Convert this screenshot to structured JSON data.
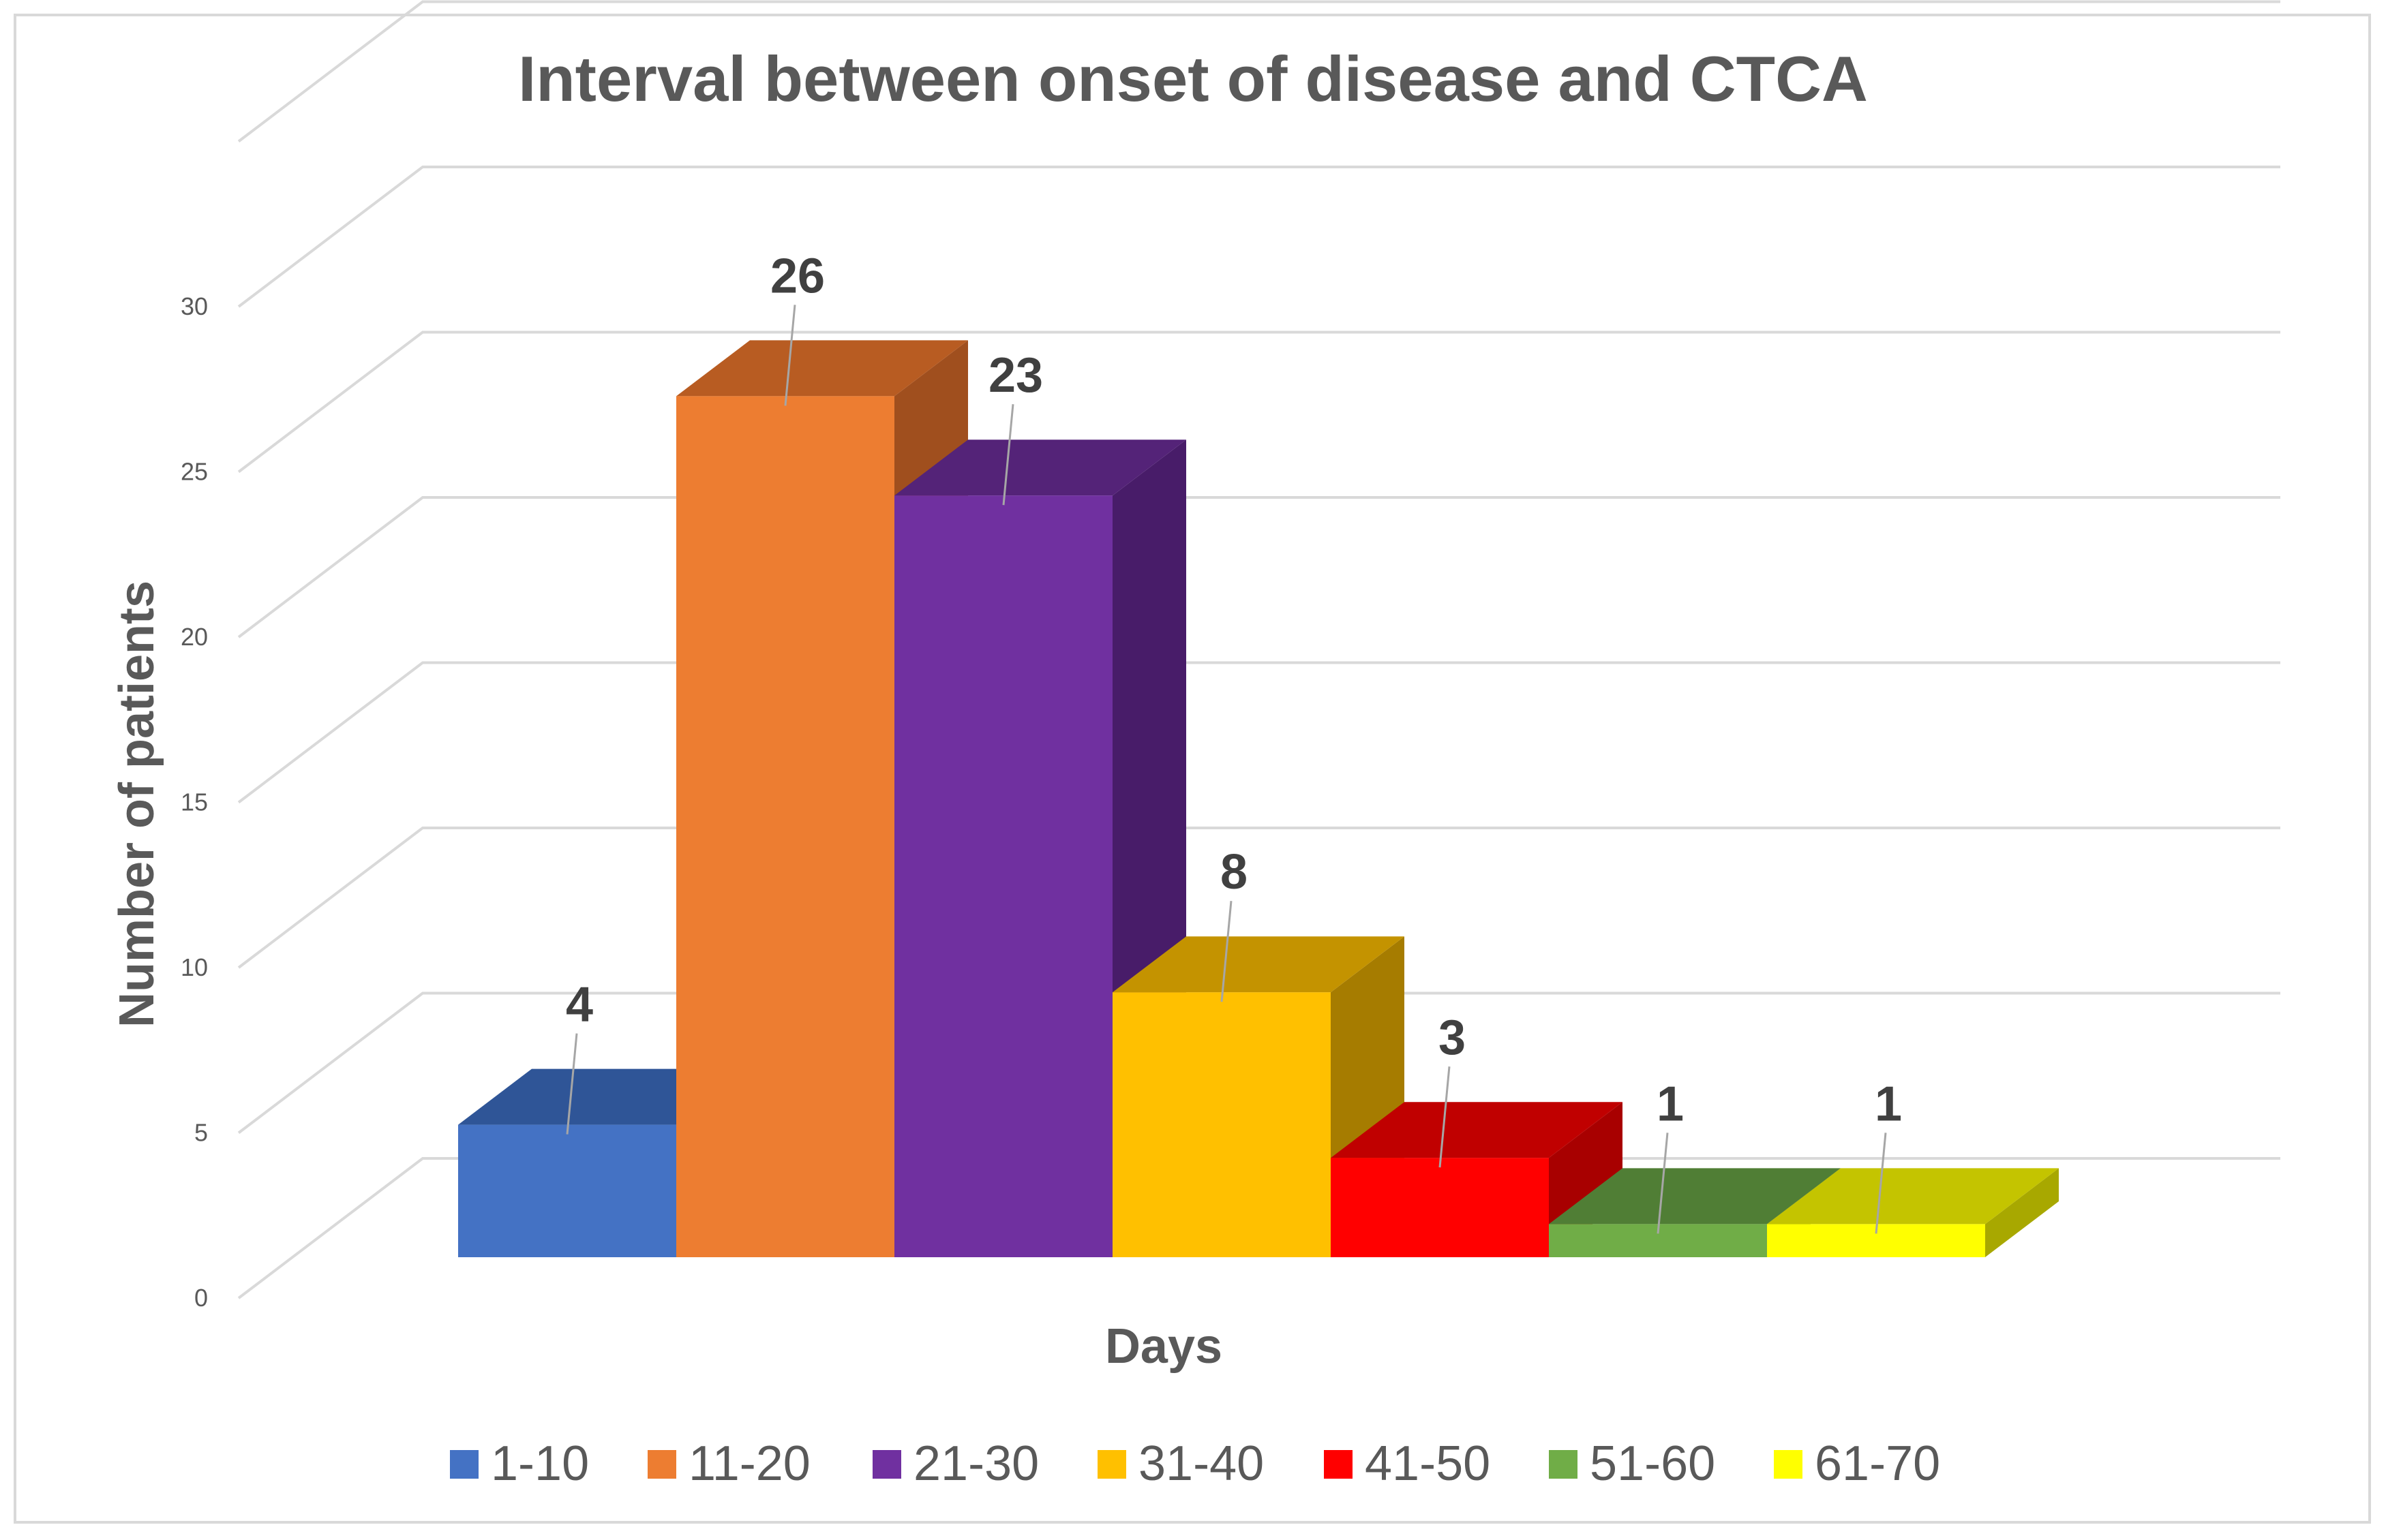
{
  "chart_data": {
    "type": "bar",
    "title": "Interval between onset of disease and CTCA",
    "xlabel": "Days",
    "ylabel": "Number of patients",
    "ylim": [
      0,
      30
    ],
    "yticks": [
      "0",
      "5",
      "10",
      "15",
      "20",
      "25",
      "30"
    ],
    "grid": true,
    "style": "3d-column",
    "legend_position": "bottom",
    "categories": [
      "1-10",
      "11-20",
      "21-30",
      "31-40",
      "41-50",
      "51-60",
      "61-70"
    ],
    "values": [
      4,
      26,
      23,
      8,
      3,
      1,
      1
    ],
    "data_labels": [
      "4",
      "26",
      "23",
      "8",
      "3",
      "1",
      "1"
    ],
    "colors": [
      "#4472C4",
      "#ED7D31",
      "#7030A0",
      "#FFC000",
      "#FF0000",
      "#70AD47",
      "#FFFF00"
    ],
    "top_colors": [
      "#2F5597",
      "#B85C22",
      "#542378",
      "#C49300",
      "#C00000",
      "#507E35",
      "#C4C400"
    ],
    "side_colors": [
      "#2A4C86",
      "#A04F1E",
      "#481C69",
      "#A67C00",
      "#A80000",
      "#456D2E",
      "#A8A800"
    ]
  }
}
